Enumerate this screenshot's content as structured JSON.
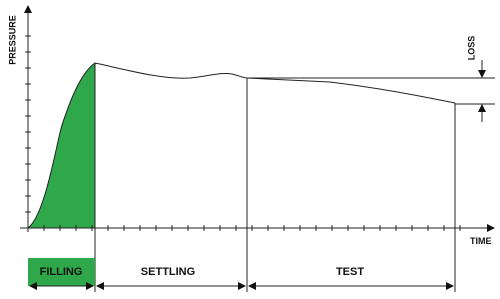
{
  "axes": {
    "y_label": "PRESSURE",
    "x_label": "TIME"
  },
  "annotation": {
    "loss": "LOSS"
  },
  "phases": [
    "FILLING",
    "SETTLING",
    "TEST"
  ]
}
